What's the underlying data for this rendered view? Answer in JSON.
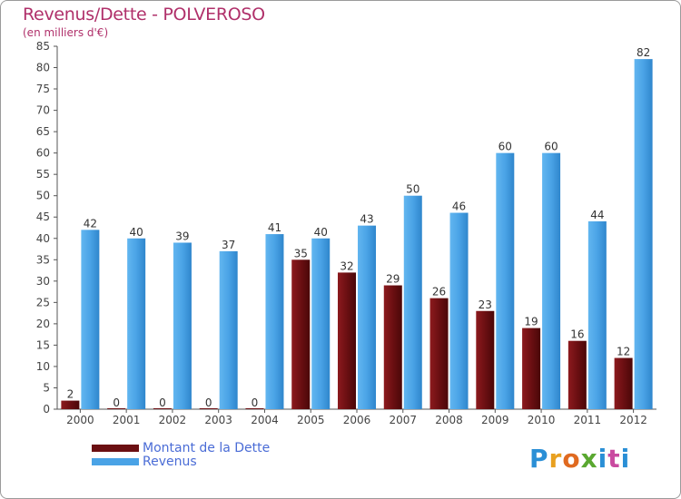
{
  "header": {
    "title": "Revenus/Dette - POLVEROSO",
    "subtitle": "(en milliers d'€)"
  },
  "colors": {
    "dette": "#6b0f12",
    "revenus": "#4aa3e6",
    "title": "#b0306a",
    "legend_text": "#4a6cd6"
  },
  "chart_data": {
    "type": "bar",
    "title": "Revenus/Dette - POLVEROSO",
    "subtitle": "(en milliers d'€)",
    "categories": [
      "2000",
      "2001",
      "2002",
      "2003",
      "2004",
      "2005",
      "2006",
      "2007",
      "2008",
      "2009",
      "2010",
      "2011",
      "2012"
    ],
    "series": [
      {
        "name": "Montant de la Dette",
        "values": [
          2,
          0,
          0,
          0,
          0,
          35,
          32,
          29,
          26,
          23,
          19,
          16,
          12
        ]
      },
      {
        "name": "Revenus",
        "values": [
          42,
          40,
          39,
          37,
          41,
          40,
          43,
          50,
          46,
          60,
          60,
          44,
          82
        ]
      }
    ],
    "ylim": [
      0,
      85
    ],
    "yticks": [
      0,
      5,
      10,
      15,
      20,
      25,
      30,
      35,
      40,
      45,
      50,
      55,
      60,
      65,
      70,
      75,
      80,
      85
    ],
    "grid": false,
    "legend": "bottom-left"
  },
  "legend": {
    "items": [
      "Montant de la Dette",
      "Revenus"
    ]
  },
  "logo": {
    "letters": [
      "P",
      "r",
      "o",
      "x",
      "i",
      "t",
      "i"
    ],
    "colors": [
      "#2a8fd6",
      "#e8a020",
      "#e06a20",
      "#5aa830",
      "#2a8fd6",
      "#c94aa0",
      "#2a8fd6"
    ]
  }
}
